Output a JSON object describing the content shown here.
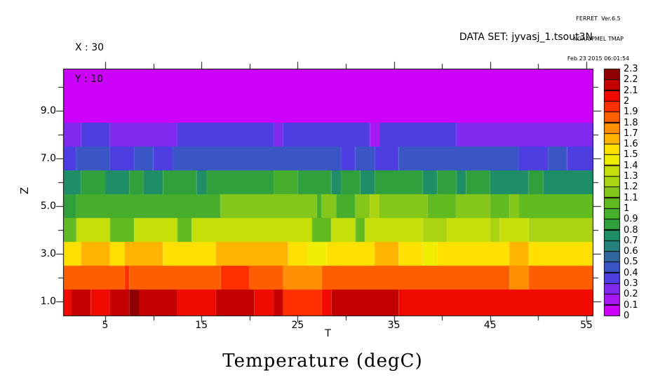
{
  "header": {
    "version_line": "FERRET  Ver.6.5",
    "org_line": "NOAA/PMEL TMAP",
    "timestamp_line": "Feb 23 2015 06:01:54"
  },
  "annotations": {
    "x_coord": "X : 30",
    "y_coord": "Y : 10",
    "dataset_label": "DATA SET: jyvasj_1.tsout3N"
  },
  "title": "Temperature (degC)",
  "chart_data": {
    "type": "heatmap",
    "title": "Temperature (degC)",
    "xlabel": "T",
    "ylabel": "Z",
    "x_range": [
      0.6,
      55.7
    ],
    "z_range": [
      0.4,
      10.8
    ],
    "grid": false,
    "x_ticks_labeled": [
      5,
      15,
      25,
      35,
      45,
      55
    ],
    "x_ticks_minor": [
      10,
      20,
      30,
      40,
      50
    ],
    "z_tick_values": [
      1,
      3,
      5,
      7,
      9
    ],
    "z_tick_labels": [
      "1.0",
      "3.0",
      "5.0",
      "7.0",
      "9.0"
    ],
    "z_ticks_minor": [
      2,
      4,
      6,
      8,
      10
    ],
    "colorbar": {
      "position": "right",
      "min": 0,
      "max": 2.3,
      "step": 0.1,
      "labels_top_to_bottom": [
        "2.3",
        "2.2",
        "2.1",
        "2",
        "1.9",
        "1.8",
        "1.7",
        "1.6",
        "1.5",
        "1.4",
        "1.3",
        "1.2",
        "1.1",
        "1",
        "0.9",
        "0.8",
        "0.7",
        "0.6",
        "0.5",
        "0.4",
        "0.3",
        "0.2",
        "0.1",
        "0"
      ],
      "palette_low_to_high": [
        "#CC00F8",
        "#A81AF4",
        "#7F2AEC",
        "#4E3EE2",
        "#3A55C6",
        "#2F689F",
        "#25827D",
        "#1F8E67",
        "#2FA03C",
        "#46AE2C",
        "#63BB22",
        "#84C619",
        "#AAD411",
        "#C5DF0A",
        "#F0EE00",
        "#FFE000",
        "#FFB400",
        "#FF8E00",
        "#FF5E00",
        "#FF3000",
        "#F00A00",
        "#C40000",
        "#900000"
      ]
    },
    "rows": [
      {
        "z": 1,
        "segments": [
          [
            0.5,
            1.5,
            2.05
          ],
          [
            1.5,
            3.5,
            2.15
          ],
          [
            3.5,
            5.5,
            2.05
          ],
          [
            5.5,
            7.5,
            2.15
          ],
          [
            7.5,
            8.5,
            2.25
          ],
          [
            8.5,
            12.5,
            2.15
          ],
          [
            12.5,
            16.5,
            2.05
          ],
          [
            16.5,
            20.5,
            2.15
          ],
          [
            20.5,
            22.5,
            2.05
          ],
          [
            22.5,
            23.5,
            2.15
          ],
          [
            23.5,
            27.5,
            1.95
          ],
          [
            27.5,
            28.5,
            2.05
          ],
          [
            28.5,
            35.5,
            2.15
          ],
          [
            35.5,
            55.7,
            2.05
          ]
        ]
      },
      {
        "z": 2,
        "segments": [
          [
            0.5,
            7,
            1.85
          ],
          [
            7,
            7.5,
            1.95
          ],
          [
            7.5,
            17,
            1.85
          ],
          [
            17,
            20,
            1.95
          ],
          [
            20,
            23.5,
            1.85
          ],
          [
            23.5,
            27.5,
            1.75
          ],
          [
            27.5,
            47,
            1.85
          ],
          [
            47,
            49,
            1.75
          ],
          [
            49,
            55.7,
            1.85
          ]
        ]
      },
      {
        "z": 3,
        "segments": [
          [
            0.5,
            2.5,
            1.55
          ],
          [
            2.5,
            5.5,
            1.65
          ],
          [
            5.5,
            7,
            1.55
          ],
          [
            7,
            11,
            1.65
          ],
          [
            11,
            16.5,
            1.55
          ],
          [
            16.5,
            24,
            1.65
          ],
          [
            24,
            26,
            1.55
          ],
          [
            26,
            28,
            1.45
          ],
          [
            28,
            33,
            1.55
          ],
          [
            33,
            35.5,
            1.65
          ],
          [
            35.5,
            38,
            1.55
          ],
          [
            38,
            39.5,
            1.45
          ],
          [
            39.5,
            47,
            1.55
          ],
          [
            47,
            49,
            1.65
          ],
          [
            49,
            55.7,
            1.55
          ]
        ]
      },
      {
        "z": 4,
        "segments": [
          [
            0.5,
            2,
            1.05
          ],
          [
            2,
            5.5,
            1.35
          ],
          [
            5.5,
            8,
            1.05
          ],
          [
            8,
            12.5,
            1.35
          ],
          [
            12.5,
            14,
            1.05
          ],
          [
            14,
            26.5,
            1.35
          ],
          [
            26.5,
            28.5,
            1.05
          ],
          [
            28.5,
            31,
            1.35
          ],
          [
            31,
            32,
            1.05
          ],
          [
            32,
            38,
            1.35
          ],
          [
            38,
            40.5,
            1.25
          ],
          [
            40.5,
            45,
            1.35
          ],
          [
            45,
            46,
            1.25
          ],
          [
            46,
            49,
            1.35
          ],
          [
            49,
            55.7,
            1.25
          ]
        ]
      },
      {
        "z": 5,
        "segments": [
          [
            0.5,
            2,
            0.85
          ],
          [
            2,
            17,
            0.95
          ],
          [
            17,
            27,
            1.15
          ],
          [
            27,
            27.5,
            0.95
          ],
          [
            27.5,
            29,
            1.15
          ],
          [
            29,
            31,
            0.95
          ],
          [
            31,
            32.5,
            1.15
          ],
          [
            32.5,
            33.5,
            1.25
          ],
          [
            33.5,
            38.5,
            1.15
          ],
          [
            38.5,
            41.5,
            1.05
          ],
          [
            41.5,
            45,
            1.15
          ],
          [
            45,
            47,
            1.05
          ],
          [
            47,
            48,
            1.15
          ],
          [
            48,
            55.7,
            1.05
          ]
        ]
      },
      {
        "z": 6,
        "segments": [
          [
            0.5,
            2.5,
            0.75
          ],
          [
            2.5,
            5,
            0.85
          ],
          [
            5,
            7.5,
            0.75
          ],
          [
            7.5,
            9,
            0.85
          ],
          [
            9,
            11,
            0.75
          ],
          [
            11,
            14.5,
            0.85
          ],
          [
            14.5,
            15.5,
            0.75
          ],
          [
            15.5,
            22.5,
            0.85
          ],
          [
            22.5,
            25,
            0.95
          ],
          [
            25,
            28.5,
            0.85
          ],
          [
            28.5,
            29.5,
            0.75
          ],
          [
            29.5,
            31.5,
            0.85
          ],
          [
            31.5,
            33,
            0.75
          ],
          [
            33,
            38,
            0.85
          ],
          [
            38,
            39.5,
            0.75
          ],
          [
            39.5,
            41.5,
            0.85
          ],
          [
            41.5,
            42.5,
            0.75
          ],
          [
            42.5,
            45,
            0.85
          ],
          [
            45,
            49,
            0.75
          ],
          [
            49,
            50.5,
            0.85
          ],
          [
            50.5,
            55.7,
            0.75
          ]
        ]
      },
      {
        "z": 7,
        "segments": [
          [
            0.5,
            2,
            0.35
          ],
          [
            2,
            5.5,
            0.45
          ],
          [
            5.5,
            8,
            0.35
          ],
          [
            8,
            10,
            0.45
          ],
          [
            10,
            12,
            0.35
          ],
          [
            12,
            29.5,
            0.45
          ],
          [
            29.5,
            31,
            0.35
          ],
          [
            31,
            33,
            0.45
          ],
          [
            33,
            35.5,
            0.35
          ],
          [
            35.5,
            48,
            0.45
          ],
          [
            48,
            51,
            0.35
          ],
          [
            51,
            53,
            0.45
          ],
          [
            53,
            55.7,
            0.35
          ]
        ]
      },
      {
        "z": 8,
        "segments": [
          [
            0.5,
            2.5,
            0.25
          ],
          [
            2.5,
            5.5,
            0.35
          ],
          [
            5.5,
            12.5,
            0.25
          ],
          [
            12.5,
            22.5,
            0.35
          ],
          [
            22.5,
            23.5,
            0.25
          ],
          [
            23.5,
            32.5,
            0.35
          ],
          [
            32.5,
            33.5,
            0.15
          ],
          [
            33.5,
            41.5,
            0.35
          ],
          [
            41.5,
            55.7,
            0.25
          ]
        ]
      },
      {
        "z": 9,
        "segments": [
          [
            0.5,
            55.7,
            0.05
          ]
        ]
      },
      {
        "z": 10,
        "segments": [
          [
            0.5,
            55.7,
            0.05
          ]
        ]
      }
    ]
  }
}
